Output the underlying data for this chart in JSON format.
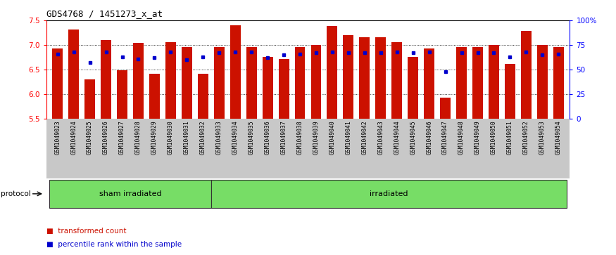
{
  "title": "GDS4768 / 1451273_x_at",
  "samples": [
    "GSM1049023",
    "GSM1049024",
    "GSM1049025",
    "GSM1049026",
    "GSM1049027",
    "GSM1049028",
    "GSM1049029",
    "GSM1049030",
    "GSM1049031",
    "GSM1049032",
    "GSM1049033",
    "GSM1049034",
    "GSM1049035",
    "GSM1049036",
    "GSM1049037",
    "GSM1049038",
    "GSM1049039",
    "GSM1049040",
    "GSM1049041",
    "GSM1049042",
    "GSM1049043",
    "GSM1049044",
    "GSM1049045",
    "GSM1049046",
    "GSM1049047",
    "GSM1049048",
    "GSM1049049",
    "GSM1049050",
    "GSM1049051",
    "GSM1049052",
    "GSM1049053",
    "GSM1049054"
  ],
  "red_values": [
    6.93,
    7.32,
    6.3,
    7.1,
    6.48,
    7.04,
    6.42,
    7.05,
    6.95,
    6.42,
    6.95,
    7.4,
    6.95,
    6.75,
    6.72,
    6.95,
    7.0,
    7.38,
    7.2,
    7.16,
    7.16,
    7.05,
    6.75,
    6.93,
    5.92,
    6.95,
    6.95,
    7.0,
    6.62,
    7.28,
    7.0,
    6.95
  ],
  "blue_values": [
    66,
    68,
    57,
    68,
    63,
    61,
    62,
    68,
    60,
    63,
    67,
    68,
    68,
    62,
    65,
    66,
    67,
    68,
    67,
    67,
    67,
    68,
    67,
    68,
    48,
    67,
    67,
    67,
    63,
    68,
    65,
    66
  ],
  "ylim_left": [
    5.5,
    7.5
  ],
  "ylim_right": [
    0,
    100
  ],
  "yticks_left": [
    5.5,
    6.0,
    6.5,
    7.0,
    7.5
  ],
  "yticks_right": [
    0,
    25,
    50,
    75,
    100
  ],
  "ytick_labels_right": [
    "0",
    "25",
    "50",
    "75",
    "100%"
  ],
  "bar_color": "#cc1100",
  "blue_color": "#0000cc",
  "sham_count": 10,
  "irradiated_count": 22,
  "protocol_sham_label": "sham irradiated",
  "protocol_irr_label": "irradiated",
  "green_color": "#77dd66",
  "legend_red_label": "transformed count",
  "legend_blue_label": "percentile rank within the sample",
  "xtick_bg": "#c8c8c8",
  "plot_bg": "#ffffff"
}
